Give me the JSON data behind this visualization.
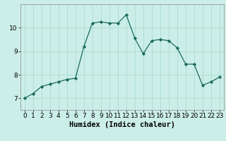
{
  "x": [
    0,
    1,
    2,
    3,
    4,
    5,
    6,
    7,
    8,
    9,
    10,
    11,
    12,
    13,
    14,
    15,
    16,
    17,
    18,
    19,
    20,
    21,
    22,
    23
  ],
  "y": [
    7.0,
    7.2,
    7.5,
    7.6,
    7.7,
    7.8,
    7.85,
    9.2,
    10.2,
    10.25,
    10.2,
    10.2,
    10.55,
    9.55,
    8.9,
    9.45,
    9.5,
    9.45,
    9.15,
    8.45,
    8.45,
    7.55,
    7.7,
    7.9
  ],
  "xlabel": "Humidex (Indice chaleur)",
  "xlim": [
    -0.5,
    23.5
  ],
  "ylim": [
    6.5,
    11.0
  ],
  "yticks": [
    7,
    8,
    9,
    10
  ],
  "xticks": [
    0,
    1,
    2,
    3,
    4,
    5,
    6,
    7,
    8,
    9,
    10,
    11,
    12,
    13,
    14,
    15,
    16,
    17,
    18,
    19,
    20,
    21,
    22,
    23
  ],
  "line_color": "#1a6b5a",
  "marker_color": "#1a6b5a",
  "bg_color": "#cceee8",
  "grid_color": "#aaddcc",
  "fig_bg": "#cceee8",
  "xlabel_fontsize": 7.5,
  "tick_fontsize": 6.5
}
